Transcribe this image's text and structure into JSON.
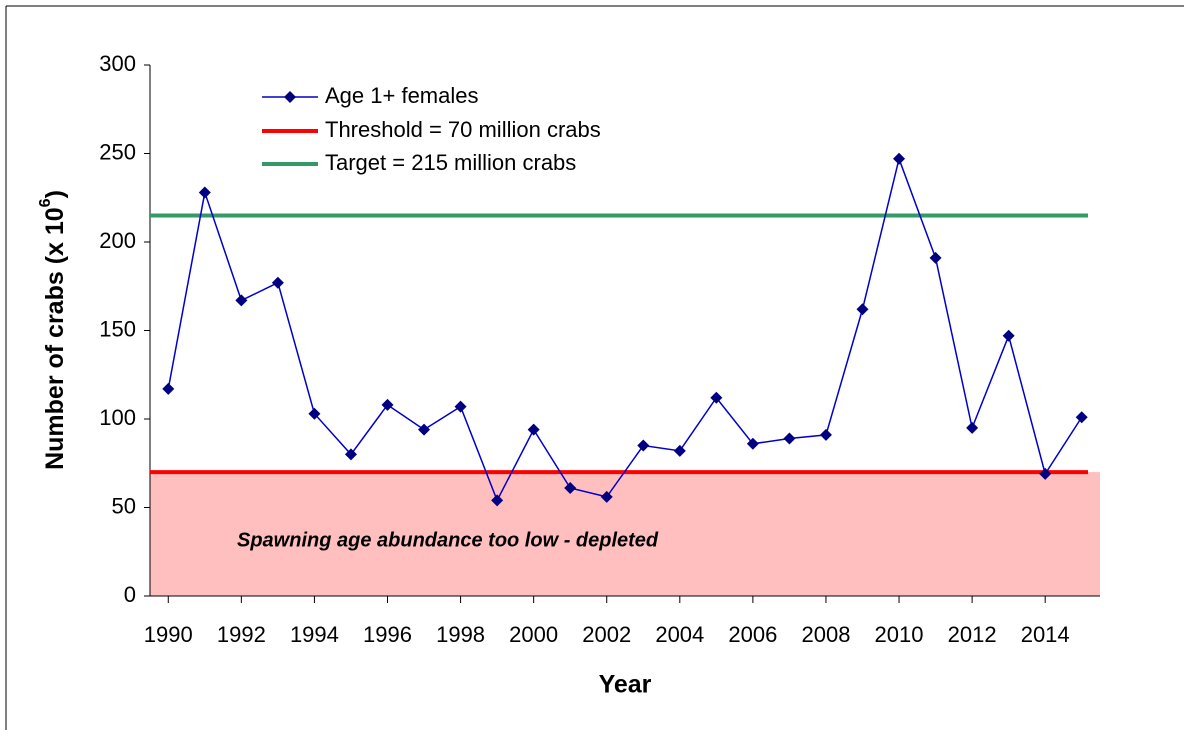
{
  "chart_data": {
    "type": "line",
    "x_label": "Year",
    "y_label": "Number of crabs (x 10",
    "y_label_sup": "6",
    "y_label_end": ")",
    "x": [
      1990,
      1991,
      1992,
      1993,
      1994,
      1995,
      1996,
      1997,
      1998,
      1999,
      2000,
      2001,
      2002,
      2003,
      2004,
      2005,
      2006,
      2007,
      2008,
      2009,
      2010,
      2011,
      2012,
      2013,
      2014,
      2015
    ],
    "series": [
      {
        "name": "Age 1+ females",
        "color": "#0000cc",
        "marker_color": "#000080",
        "values": [
          117,
          228,
          167,
          177,
          103,
          80,
          108,
          94,
          107,
          54,
          94,
          61,
          56,
          85,
          82,
          112,
          86,
          89,
          91,
          162,
          247,
          191,
          95,
          147,
          69,
          101
        ]
      }
    ],
    "reference_lines": [
      {
        "name": "Threshold = 70 million crabs",
        "value": 70,
        "color": "#ff0000"
      },
      {
        "name": "Target = 215 million crabs",
        "value": 215,
        "color": "#339966"
      }
    ],
    "shaded_band": {
      "from": 0,
      "to": 70,
      "color": "#ffbfbf",
      "label": "Spawning age abundance too low - depleted"
    },
    "xlim": [
      1989.5,
      2015.5
    ],
    "xticks": [
      1990,
      1992,
      1994,
      1996,
      1998,
      2000,
      2002,
      2004,
      2006,
      2008,
      2010,
      2012,
      2014
    ],
    "ylim": [
      0,
      300
    ],
    "yticks": [
      0,
      50,
      100,
      150,
      200,
      250,
      300
    ],
    "grid": false
  }
}
